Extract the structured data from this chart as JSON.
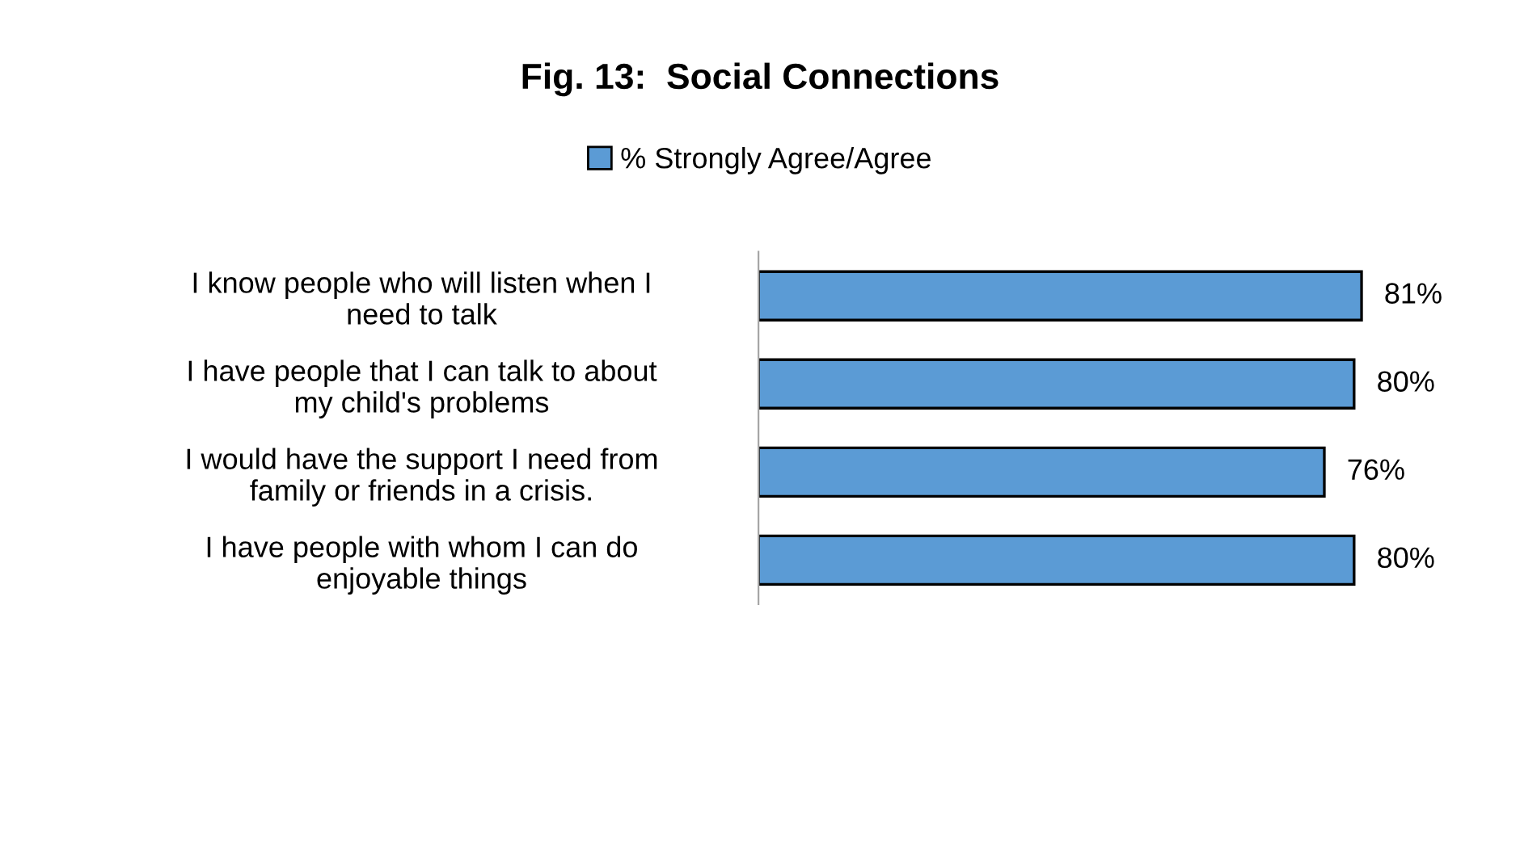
{
  "chart_data": {
    "type": "bar",
    "orientation": "horizontal",
    "title": "Fig. 13:  Social Connections",
    "categories": [
      "I know people who will listen when I need to talk",
      "I have people that I can talk to about my child's problems",
      "I would have the support I need from family or friends in a crisis.",
      "I have people with whom I can do enjoyable things"
    ],
    "series": [
      {
        "name": "% Strongly Agree/Agree",
        "color": "#5b9bd5",
        "values": [
          81,
          80,
          76,
          80
        ],
        "value_labels": [
          "81%",
          "80%",
          "76%",
          "80%"
        ]
      }
    ],
    "grid": false,
    "legend": "top",
    "tick_labels": "y"
  }
}
